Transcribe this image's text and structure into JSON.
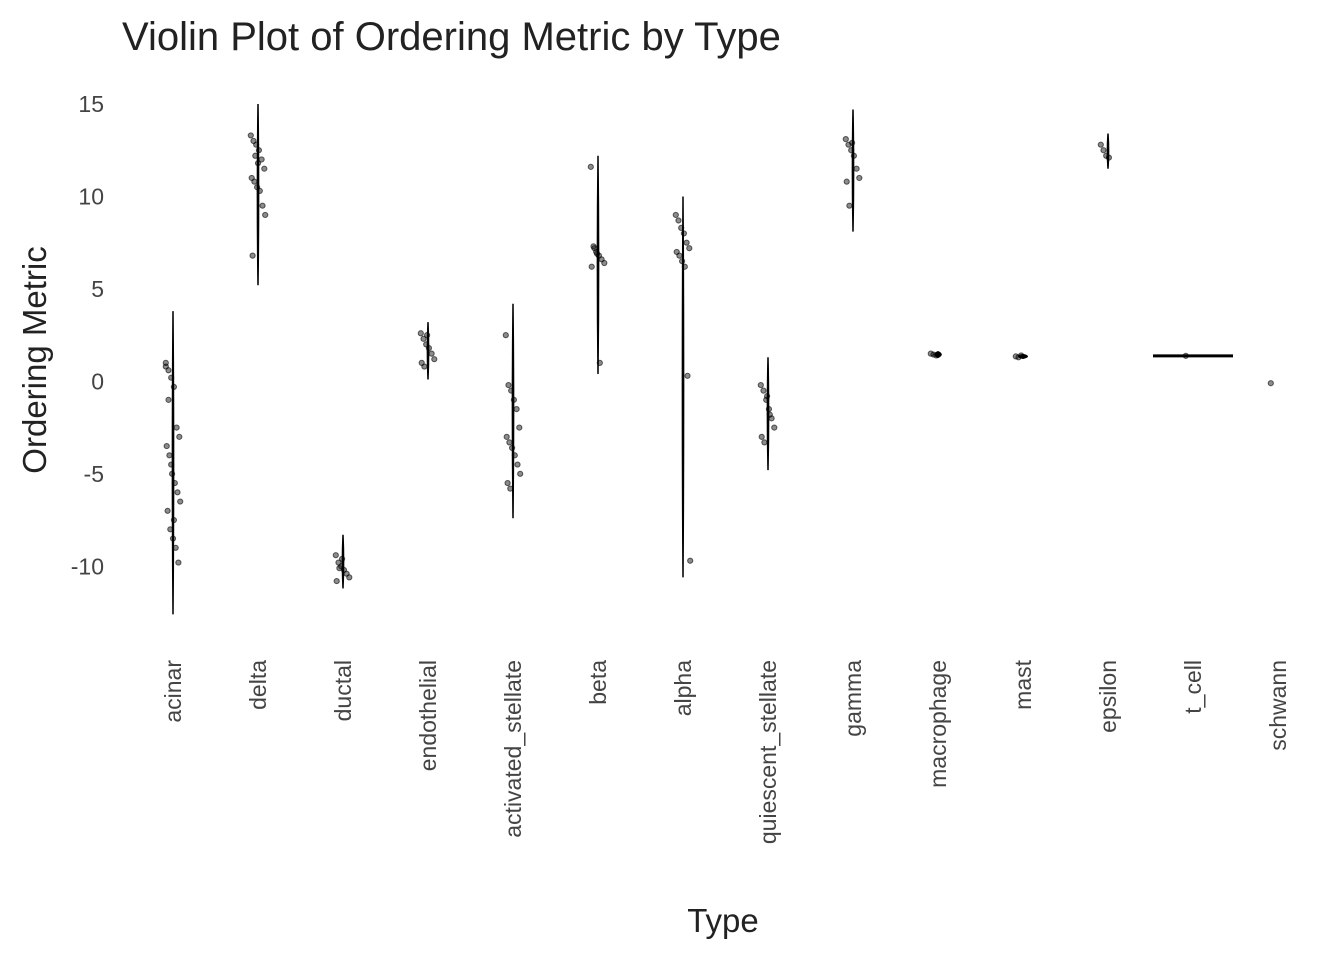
{
  "chart_data": {
    "type": "violin",
    "title": "Violin Plot of Ordering Metric by Type",
    "x_label": "Type",
    "y_label": "Ordering Metric",
    "categories": [
      "acinar",
      "delta",
      "ductal",
      "endothelial",
      "activated_stellate",
      "beta",
      "alpha",
      "quiescent_stellate",
      "gamma",
      "macrophage",
      "mast",
      "epsilon",
      "t_cell",
      "schwann"
    ],
    "ranges": [
      [
        -12.6,
        3.8
      ],
      [
        5.2,
        15
      ],
      [
        -11.2,
        -8.3
      ],
      [
        0.1,
        3.2
      ],
      [
        -7.4,
        4.2
      ],
      [
        0.4,
        12.2
      ],
      [
        -10.6,
        10
      ],
      [
        -4.8,
        1.3
      ],
      [
        8.1,
        14.7
      ],
      [
        1.3,
        1.6
      ],
      [
        1.25,
        1.45
      ],
      [
        11.5,
        13.4
      ],
      [
        1.38,
        1.38
      ],
      null
    ],
    "points": [
      [
        1,
        0.6,
        0.2,
        -0.3,
        -2.5,
        -3,
        -3.5,
        -4,
        -5,
        -5.5,
        -6,
        -6.5,
        -7,
        -8,
        -8.5,
        -9,
        -9.8,
        0.8,
        -1,
        -4.5,
        -7.5
      ],
      [
        13.3,
        13,
        12.8,
        12.5,
        12,
        11.5,
        11,
        10.8,
        10.5,
        10.3,
        9.5,
        9,
        6.8,
        12.2,
        11.8
      ],
      [
        -9.4,
        -9.8,
        -10,
        -10.2,
        -10.4,
        -10.6,
        -10.8,
        -10.1,
        -9.6
      ],
      [
        2.6,
        2.3,
        2,
        1.8,
        1.5,
        1.2,
        1,
        0.8,
        2.5
      ],
      [
        2.5,
        -0.2,
        -0.5,
        -1,
        -1.5,
        -2.5,
        -3,
        -3.3,
        -3.6,
        -4,
        -4.5,
        -5,
        -5.5,
        -5.8
      ],
      [
        11.6,
        7.3,
        7,
        6.8,
        6.6,
        6.4,
        6.2,
        7.2,
        6.9,
        1
      ],
      [
        9,
        8.7,
        8.3,
        8,
        7.5,
        7.2,
        7,
        6.8,
        6.5,
        6.2,
        0.3,
        -9.7
      ],
      [
        -0.2,
        -0.5,
        -1,
        -1.5,
        -2,
        -2.5,
        -3,
        -3.3,
        -0.8,
        -1.8
      ],
      [
        13.1,
        12.8,
        12.5,
        12.2,
        11.5,
        11,
        10.8,
        9.5,
        12.9
      ],
      [
        1.5,
        1.45,
        1.4
      ],
      [
        1.35,
        1.3,
        1.4
      ],
      [
        12.8,
        12.5,
        12.2,
        12.1
      ],
      [
        1.38
      ],
      [
        -0.1
      ]
    ],
    "color": "#000000",
    "ylim": [
      -13.5,
      16
    ],
    "yticks": [
      -10,
      -5,
      0,
      5,
      10,
      15
    ],
    "grid": false
  }
}
